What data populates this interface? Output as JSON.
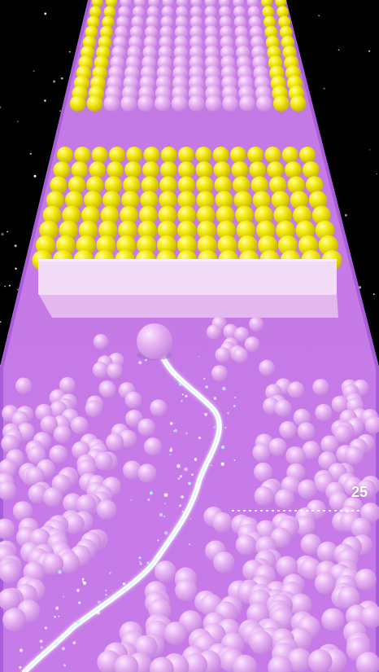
{
  "game": {
    "distance_marker": "25",
    "colors": {
      "background": "#000000",
      "track_top": "#c97ee8",
      "track_bottom": "#c77ae8",
      "track_edge": "#a45ad6",
      "ball_pink": "#e2a9f0",
      "ball_yellow": "#f2e600",
      "wall": "#f1d7f6",
      "trail": "#ffffff"
    },
    "entities": {
      "player_ball": "player-ball",
      "barrier": "barrier-wall",
      "trail": "paint-trail"
    }
  }
}
